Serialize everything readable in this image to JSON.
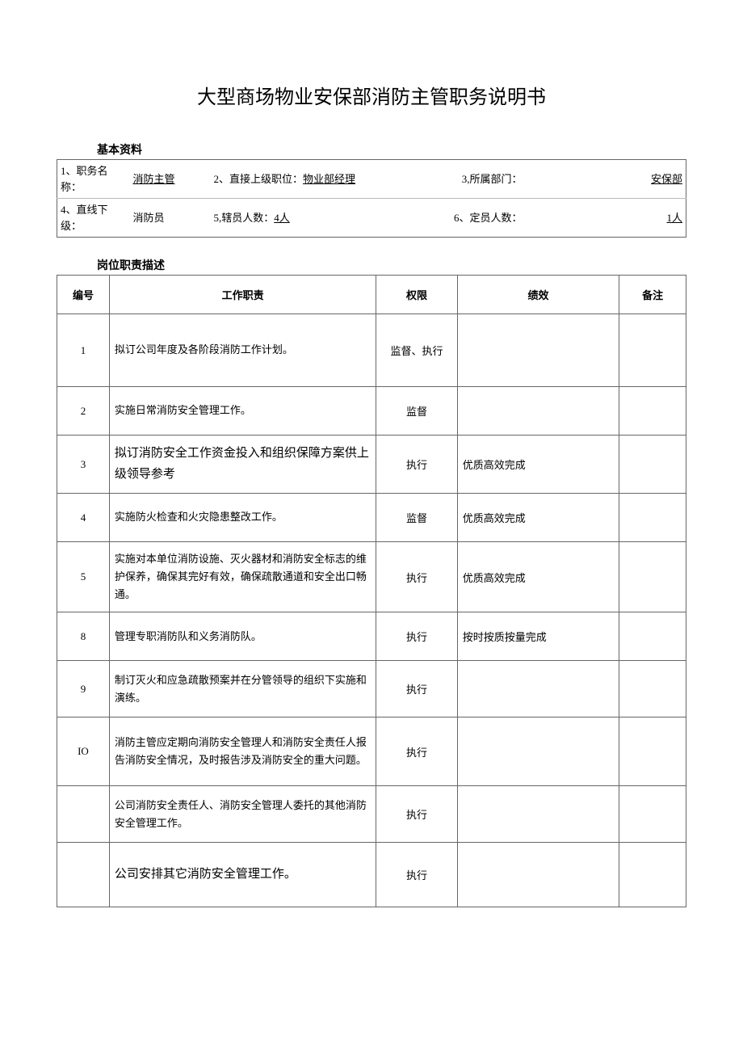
{
  "title": "大型商场物业安保部消防主管职务说明书",
  "sections": {
    "basic": "基本资料",
    "duties": "岗位职责描述"
  },
  "basic": {
    "row1": {
      "label1": "1、职务名称：",
      "val1": "消防主管",
      "label2": "2、直接上级职位：",
      "val2": "物业部经理",
      "label3": "3,所属部门：",
      "val3": "安保部"
    },
    "row2": {
      "label1": "4、直线下级：",
      "val1": "消防员",
      "label2": "5,辖员人数：",
      "val2": "4人",
      "label3": "6、定员人数：",
      "val3": "1人"
    }
  },
  "dutiesHeader": {
    "num": "编号",
    "duty": "工作职责",
    "auth": "权限",
    "perf": "绩效",
    "note": "备注"
  },
  "duties": [
    {
      "num": "1",
      "duty": "拟订公司年度及各阶段消防工作计划。",
      "auth": "监督、执行",
      "perf": "",
      "note": ""
    },
    {
      "num": "2",
      "duty": "实施日常消防安全管理工作。",
      "auth": "监督",
      "perf": "",
      "note": ""
    },
    {
      "num": "3",
      "duty": "拟订消防安全工作资金投入和组织保障方案供上级领导参考",
      "auth": "执行",
      "perf": "优质高效完成",
      "note": ""
    },
    {
      "num": "4",
      "duty": "实施防火检查和火灾隐患整改工作。",
      "auth": "监督",
      "perf": "优质高效完成",
      "note": ""
    },
    {
      "num": "5",
      "duty": "实施对本单位消防设施、灭火器材和消防安全标志的维护保养，确保其完好有效，确保疏散通道和安全出口畅通。",
      "auth": "执行",
      "perf": "优质高效完成",
      "note": ""
    },
    {
      "num": "8",
      "duty": "管理专职消防队和义务消防队。",
      "auth": "执行",
      "perf": "按时按质按量完成",
      "note": ""
    },
    {
      "num": "9",
      "duty": "制订灭火和应急疏散预案并在分管领导的组织下实施和演练。",
      "auth": "执行",
      "perf": "",
      "note": ""
    },
    {
      "num": "IO",
      "duty": "消防主管应定期向消防安全管理人和消防安全责任人报告消防安全情况，及时报告涉及消防安全的重大问题。",
      "auth": "执行",
      "perf": "",
      "note": ""
    },
    {
      "num": "",
      "duty": "公司消防安全责任人、消防安全管理人委托的其他消防安全管理工作。",
      "auth": "执行",
      "perf": "",
      "note": ""
    },
    {
      "num": "",
      "duty": "公司安排其它消防安全管理工作。",
      "auth": "执行",
      "perf": "",
      "note": ""
    }
  ]
}
